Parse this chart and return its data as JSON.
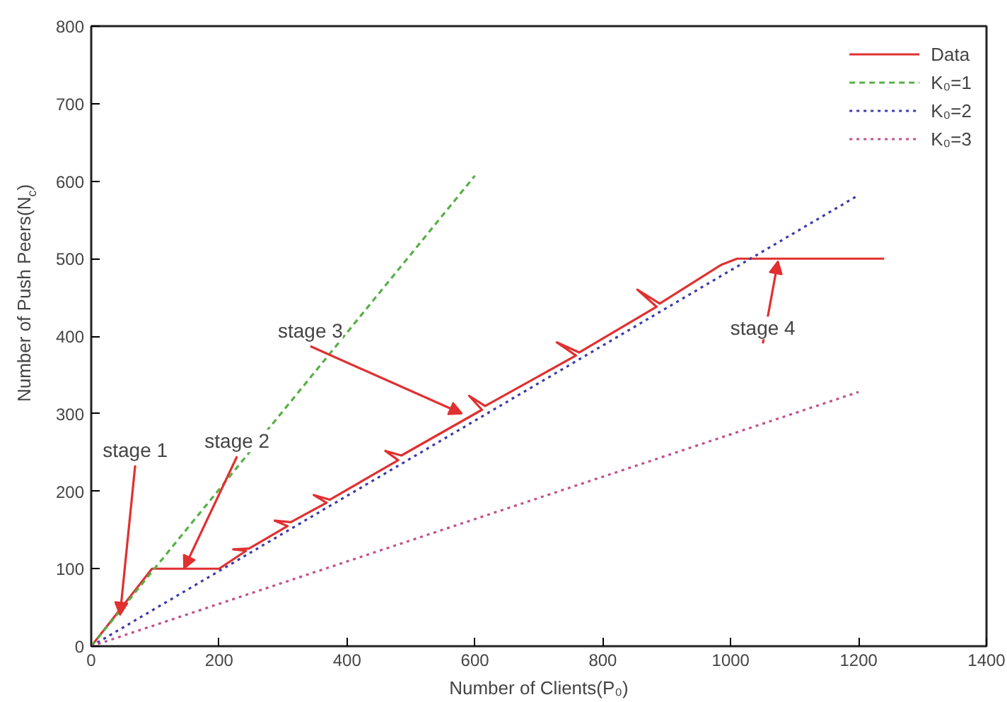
{
  "chart_data": {
    "type": "line",
    "xlabel": "Number of Clients(P₀)",
    "ylabel": "Number of Push Peers(N$_{c}$)",
    "xlim": [
      0,
      1400
    ],
    "ylim": [
      0,
      800
    ],
    "xticks": [
      0,
      200,
      400,
      600,
      800,
      1000,
      1200,
      1400
    ],
    "yticks": [
      0,
      100,
      200,
      300,
      400,
      500,
      600,
      700,
      800
    ],
    "grid": false,
    "legend": "top right",
    "marker": "none",
    "series": [
      {
        "name": "Data",
        "color": "#e03030",
        "line_style": "solid",
        "x": [
          0,
          60,
          95,
          200,
          242,
          222,
          247,
          307,
          287,
          312,
          368,
          348,
          373,
          480,
          460,
          485,
          611,
          591,
          616,
          758,
          728,
          763,
          884,
          854,
          889,
          985,
          1010,
          1240
        ],
        "values": [
          0,
          63,
          100,
          100,
          123,
          125,
          126,
          155,
          162,
          160,
          185,
          195,
          189,
          240,
          252,
          246,
          305,
          323,
          310,
          375,
          392,
          379,
          438,
          460,
          442,
          492,
          500,
          500
        ]
      },
      {
        "name": "K₀=1",
        "color": "#55b045",
        "line_style": "dashed",
        "x": [
          0,
          600
        ],
        "values": [
          0,
          607
        ]
      },
      {
        "name": "K₀=2",
        "color": "#3a3aa8",
        "line_style": "dotted",
        "x": [
          0,
          1200
        ],
        "values": [
          0,
          582
        ]
      },
      {
        "name": "K₀=3",
        "color": "#c0508e",
        "line_style": "dotted",
        "x": [
          0,
          1200
        ],
        "values": [
          0,
          328
        ]
      }
    ],
    "annotations": [
      {
        "text": "stage 1",
        "x": 45,
        "y": 40
      },
      {
        "text": "stage 2",
        "x": 145,
        "y": 100
      },
      {
        "text": "stage 3",
        "x": 580,
        "y": 300
      },
      {
        "text": "stage 4",
        "x": 1074,
        "y": 497
      }
    ]
  }
}
